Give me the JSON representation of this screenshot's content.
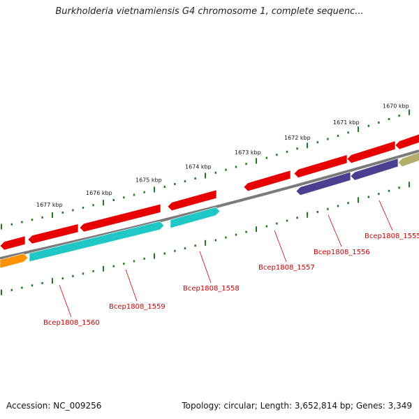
{
  "title": "Burkholderia vietnamiensis G4 chromosome 1, complete sequenc...",
  "accession": "Accession: NC_009256",
  "topology": "Topology: circular; Length: 3,652,814 bp; Genes: 3,349",
  "colors": {
    "backbone": "#7a7a7a",
    "tick": "#1d7a1d",
    "gene_red": "#e60000",
    "gene_cyan": "#1fc7c7",
    "gene_purple": "#4b3f8f",
    "gene_orange": "#ff9200",
    "gene_olive": "#b5ae6b",
    "locus_text": "#cc0000"
  },
  "scale_labels": [
    "1677 kbp",
    "1676 kbp",
    "1675 kbp",
    "1674 kbp",
    "1673 kbp",
    "1672 kbp",
    "1671 kbp",
    "1670 kbp"
  ],
  "genes": [
    {
      "strand": "forward",
      "color": "gene_red",
      "direction": "left"
    },
    {
      "strand": "forward",
      "color": "gene_red",
      "direction": "left"
    },
    {
      "strand": "forward",
      "color": "gene_red",
      "direction": "left"
    },
    {
      "strand": "forward",
      "color": "gene_red",
      "direction": "left"
    },
    {
      "strand": "forward",
      "color": "gene_red",
      "direction": "left"
    },
    {
      "strand": "forward",
      "color": "gene_red",
      "direction": "left"
    },
    {
      "strand": "forward",
      "color": "gene_red",
      "direction": "left"
    },
    {
      "strand": "forward",
      "color": "gene_red",
      "direction": "left"
    },
    {
      "strand": "reverse",
      "color": "gene_orange",
      "direction": "right"
    },
    {
      "strand": "reverse",
      "color": "gene_cyan",
      "direction": "right"
    },
    {
      "strand": "reverse",
      "color": "gene_cyan",
      "direction": "right"
    },
    {
      "strand": "reverse",
      "color": "gene_purple",
      "direction": "left"
    },
    {
      "strand": "reverse",
      "color": "gene_purple",
      "direction": "left"
    },
    {
      "strand": "reverse",
      "color": "gene_olive",
      "direction": "left"
    }
  ],
  "locus_labels": [
    "Bcep1808_1560",
    "Bcep1808_1559",
    "Bcep1808_1558",
    "Bcep1808_1557",
    "Bcep1808_1556",
    "Bcep1808_1555"
  ]
}
